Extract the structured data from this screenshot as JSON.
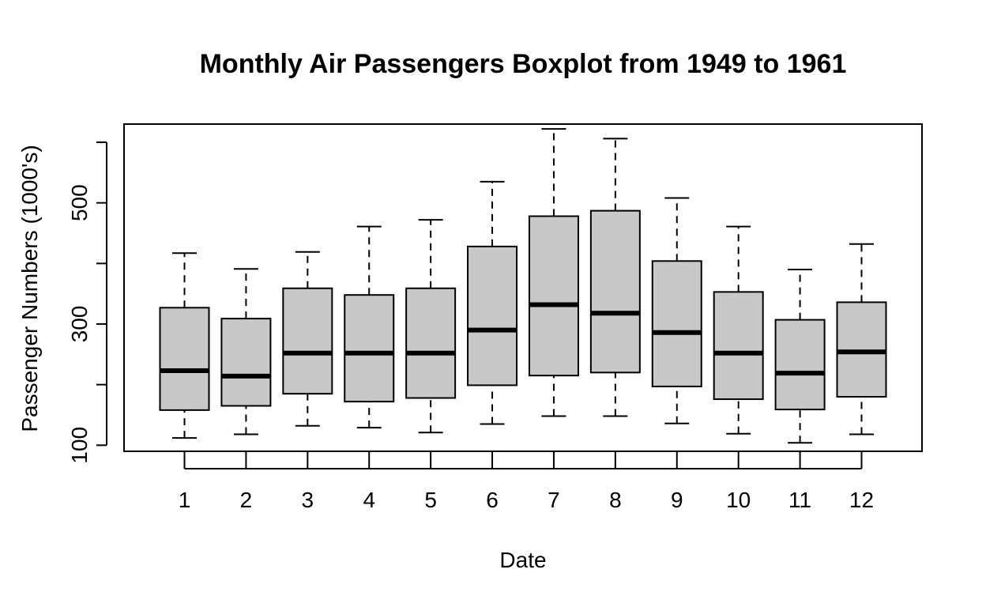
{
  "chart_data": {
    "type": "boxplot",
    "title": "Monthly Air Passengers Boxplot from 1949 to 1961",
    "xlabel": "Date",
    "ylabel": "Passenger Numbers (1000's)",
    "ylim": [
      90,
      630
    ],
    "y_ticks": [
      100,
      200,
      300,
      400,
      500,
      600
    ],
    "y_tick_labels": [
      "100",
      "",
      "300",
      "",
      "500",
      ""
    ],
    "grid": false,
    "colors": {
      "box_fill": "#c8c8c8",
      "stroke": "#000000"
    },
    "categories": [
      "1",
      "2",
      "3",
      "4",
      "5",
      "6",
      "7",
      "8",
      "9",
      "10",
      "11",
      "12"
    ],
    "boxes": [
      {
        "min": 112,
        "q1": 158,
        "median": 223,
        "q3": 327,
        "max": 417
      },
      {
        "min": 118,
        "q1": 165,
        "median": 214,
        "q3": 309,
        "max": 391
      },
      {
        "min": 132,
        "q1": 185,
        "median": 252,
        "q3": 359,
        "max": 419
      },
      {
        "min": 129,
        "q1": 172,
        "median": 252,
        "q3": 348,
        "max": 461
      },
      {
        "min": 121,
        "q1": 178,
        "median": 252,
        "q3": 359,
        "max": 472
      },
      {
        "min": 135,
        "q1": 199,
        "median": 290,
        "q3": 428,
        "max": 535
      },
      {
        "min": 148,
        "q1": 215,
        "median": 332,
        "q3": 478,
        "max": 622
      },
      {
        "min": 148,
        "q1": 220,
        "median": 318,
        "q3": 487,
        "max": 606
      },
      {
        "min": 136,
        "q1": 197,
        "median": 286,
        "q3": 404,
        "max": 508
      },
      {
        "min": 119,
        "q1": 176,
        "median": 252,
        "q3": 353,
        "max": 461
      },
      {
        "min": 104,
        "q1": 159,
        "median": 219,
        "q3": 307,
        "max": 390
      },
      {
        "min": 118,
        "q1": 180,
        "median": 254,
        "q3": 336,
        "max": 432
      }
    ]
  }
}
